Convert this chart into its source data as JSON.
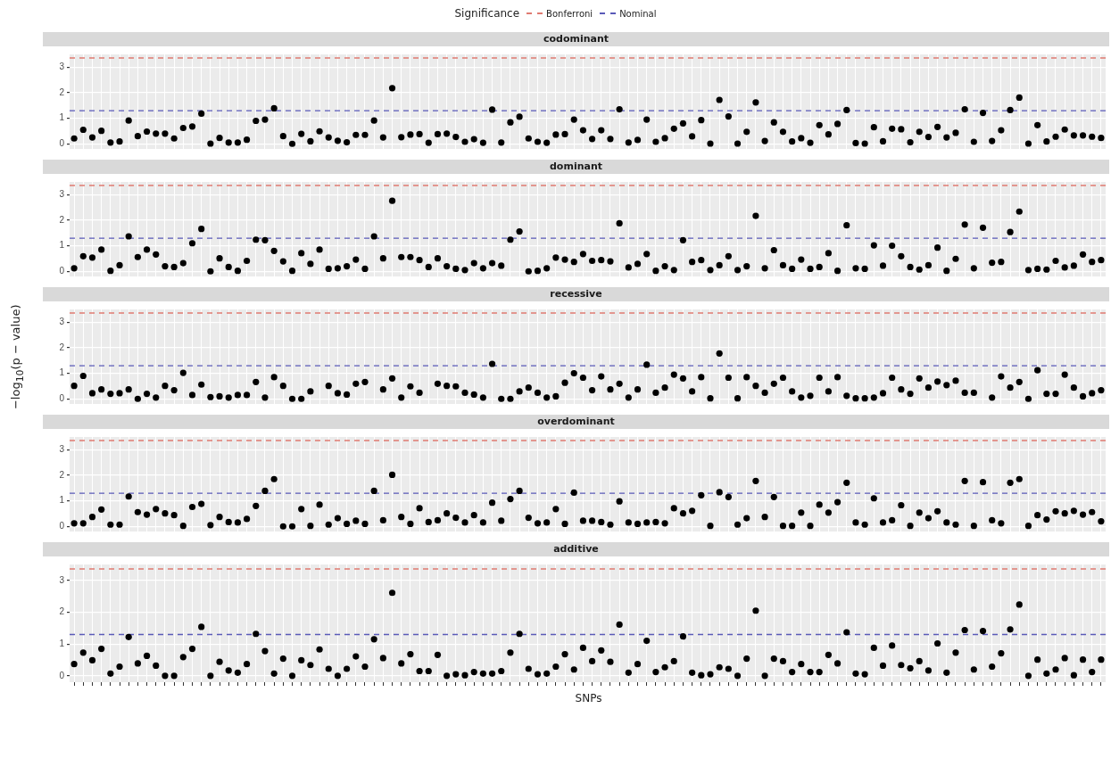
{
  "chart_data": [
    {
      "type": "scatter",
      "title": "codominant",
      "legend_title": "Significance",
      "legend": "top",
      "marker": "circle",
      "grid": true,
      "tick_labels": "y",
      "color": "#000000",
      "categories": [
        null,
        null,
        null,
        null,
        null,
        null,
        null,
        null,
        null,
        null,
        null,
        null,
        null,
        null,
        null,
        null,
        null,
        null,
        null,
        null,
        null,
        null,
        null,
        null,
        null,
        null,
        null,
        null,
        null,
        null,
        null,
        null,
        null,
        null,
        null,
        null,
        null,
        null,
        null,
        null,
        null,
        null,
        null,
        null,
        null,
        null,
        null,
        null,
        null,
        null,
        null,
        null,
        null,
        null,
        null,
        null,
        null,
        null,
        null,
        null,
        null,
        null,
        null,
        null,
        null,
        null,
        null,
        null,
        null,
        null,
        null,
        null,
        null,
        null,
        null,
        null,
        null,
        null,
        null,
        null,
        null,
        null,
        null,
        null,
        null,
        null,
        null,
        null,
        null,
        null,
        null,
        null,
        null,
        null,
        null,
        null,
        null,
        null,
        null,
        null,
        null,
        null,
        null,
        null,
        null,
        null,
        null,
        null,
        null,
        null,
        null,
        null,
        null,
        null
      ],
      "values": [
        0.21,
        0.55,
        0.25,
        0.51,
        0.05,
        0.09,
        0.91,
        0.3,
        0.48,
        0.4,
        0.4,
        0.21,
        0.62,
        0.68,
        1.18,
        0.01,
        0.23,
        0.05,
        0.05,
        0.16,
        0.9,
        0.95,
        1.39,
        0.3,
        0,
        0.39,
        0.1,
        0.49,
        0.25,
        0.12,
        0.06,
        0.35,
        0.35,
        0.91,
        0.25,
        2.18,
        0.26,
        0.36,
        0.38,
        0.04,
        0.38,
        0.4,
        0.27,
        0.08,
        0.18,
        0.04,
        1.34,
        0.05,
        0.84,
        1.06,
        0.21,
        0.08,
        0.04,
        0.36,
        0.38,
        0.95,
        0.53,
        0.19,
        0.53,
        0.19,
        1.35,
        0.05,
        0.15,
        0.95,
        0.08,
        0.22,
        0.59,
        0.8,
        0.29,
        0.93,
        0.01,
        1.72,
        1.07,
        0.01,
        0.47,
        1.62,
        0.11,
        0.84,
        0.47,
        0.09,
        0.22,
        0.04,
        0.73,
        0.37,
        0.78,
        1.32,
        0.03,
        0.01,
        0.65,
        0.1,
        0.59,
        0.57,
        0.06,
        0.47,
        0.27,
        0.66,
        0.25,
        0.43,
        1.35,
        0.08,
        1.21,
        0.11,
        0.53,
        1.32,
        1.81,
        0.01,
        0.73,
        0.09,
        0.28,
        0.56,
        0.33,
        0.33,
        0.28,
        0.23
      ],
      "ylim": [
        -0.2,
        3.5
      ],
      "yticks": [
        0,
        1,
        2,
        3
      ],
      "ref_lines": [
        {
          "axis": "y",
          "value": 3.36,
          "label": "Bonferroni",
          "color": "#e07b72",
          "line_style": "dashed"
        },
        {
          "axis": "y",
          "value": 1.3,
          "label": "Nominal",
          "color": "#5a5ab8",
          "line_style": "dashed"
        }
      ]
    },
    {
      "type": "scatter",
      "title": "dominant",
      "marker": "circle",
      "grid": true,
      "tick_labels": "y",
      "color": "#000000",
      "categories": [
        null,
        null,
        null,
        null,
        null,
        null,
        null,
        null,
        null,
        null,
        null,
        null,
        null,
        null,
        null,
        null,
        null,
        null,
        null,
        null,
        null,
        null,
        null,
        null,
        null,
        null,
        null,
        null,
        null,
        null,
        null,
        null,
        null,
        null,
        null,
        null,
        null,
        null,
        null,
        null,
        null,
        null,
        null,
        null,
        null,
        null,
        null,
        null,
        null,
        null,
        null,
        null,
        null,
        null,
        null,
        null,
        null,
        null,
        null,
        null,
        null,
        null,
        null,
        null,
        null,
        null,
        null,
        null,
        null,
        null,
        null,
        null,
        null,
        null,
        null,
        null,
        null,
        null,
        null,
        null,
        null,
        null,
        null,
        null,
        null,
        null,
        null,
        null,
        null,
        null,
        null,
        null,
        null,
        null,
        null,
        null,
        null,
        null,
        null,
        null,
        null,
        null,
        null,
        null,
        null,
        null,
        null,
        null,
        null,
        null,
        null,
        null,
        null,
        null
      ],
      "values": [
        0.12,
        0.59,
        0.54,
        0.85,
        0.02,
        0.24,
        1.37,
        0.56,
        0.85,
        0.66,
        0.2,
        0.17,
        0.32,
        1.1,
        1.66,
        0,
        0.51,
        0.17,
        0.02,
        0.41,
        1.24,
        1.22,
        0.8,
        0.39,
        0.02,
        0.71,
        0.29,
        0.85,
        0.1,
        0.12,
        0.2,
        0.46,
        0.1,
        1.37,
        0.51,
        2.76,
        0.56,
        0.56,
        0.44,
        0.17,
        0.51,
        0.2,
        0.1,
        0.05,
        0.32,
        0.12,
        0.32,
        0.22,
        1.24,
        1.56,
        0,
        0.02,
        0.12,
        0.54,
        0.46,
        0.37,
        0.68,
        0.41,
        0.44,
        0.39,
        1.88,
        0.15,
        0.29,
        0.68,
        0.02,
        0.2,
        0.05,
        1.22,
        0.37,
        0.44,
        0.05,
        0.24,
        0.59,
        0.05,
        0.2,
        2.17,
        0.12,
        0.83,
        0.24,
        0.1,
        0.46,
        0.1,
        0.17,
        0.71,
        0.02,
        1.8,
        0.12,
        0.1,
        1.02,
        0.22,
        1,
        0.59,
        0.17,
        0.07,
        0.24,
        0.93,
        0.02,
        0.49,
        1.83,
        0.12,
        1.71,
        0.34,
        0.37,
        1.54,
        2.34,
        0.05,
        0.1,
        0.07,
        0.41,
        0.15,
        0.22,
        0.66,
        0.37,
        0.44
      ],
      "ylim": [
        -0.2,
        3.5
      ],
      "yticks": [
        0,
        1,
        2,
        3
      ],
      "ref_lines": [
        {
          "axis": "y",
          "value": 3.36,
          "color": "#e07b72",
          "line_style": "dashed"
        },
        {
          "axis": "y",
          "value": 1.3,
          "color": "#5a5ab8",
          "line_style": "dashed"
        }
      ]
    },
    {
      "type": "scatter",
      "title": "recessive",
      "ylabel": "−log$_{10}$(p − value)",
      "marker": "circle",
      "grid": true,
      "tick_labels": "y",
      "color": "#000000",
      "categories": [
        null,
        null,
        null,
        null,
        null,
        null,
        null,
        null,
        null,
        null,
        null,
        null,
        null,
        null,
        null,
        null,
        null,
        null,
        null,
        null,
        null,
        null,
        null,
        null,
        null,
        null,
        null,
        null,
        null,
        null,
        null,
        null,
        null,
        null,
        null,
        null,
        null,
        null,
        null,
        null,
        null,
        null,
        null,
        null,
        null,
        null,
        null,
        null,
        null,
        null,
        null,
        null,
        null,
        null,
        null,
        null,
        null,
        null,
        null,
        null,
        null,
        null,
        null,
        null,
        null,
        null,
        null,
        null,
        null,
        null,
        null,
        null,
        null,
        null,
        null,
        null,
        null,
        null,
        null,
        null,
        null,
        null,
        null,
        null,
        null,
        null,
        null,
        null,
        null,
        null,
        null,
        null,
        null,
        null,
        null,
        null,
        null,
        null,
        null,
        null,
        null,
        null,
        null,
        null,
        null,
        null,
        null,
        null,
        null,
        null,
        null,
        null,
        null,
        null
      ],
      "values": [
        0.51,
        0.9,
        0.22,
        0.37,
        0.2,
        0.22,
        0.37,
        0,
        0.2,
        0.05,
        0.51,
        0.34,
        1.02,
        0.15,
        0.56,
        0.07,
        0.1,
        0.05,
        0.15,
        0.15,
        0.66,
        0.05,
        0.85,
        0.51,
        0,
        0,
        0.29,
        null,
        0.51,
        0.22,
        0.17,
        0.59,
        0.66,
        null,
        0.37,
        0.8,
        0.05,
        0.49,
        0.24,
        null,
        0.59,
        0.51,
        0.49,
        0.24,
        0.17,
        0.05,
        1.37,
        0,
        0,
        0.29,
        0.44,
        0.24,
        0.05,
        0.1,
        0.63,
        1,
        0.83,
        0.34,
        0.88,
        0.37,
        0.59,
        0.05,
        0.37,
        1.34,
        0.24,
        0.44,
        0.95,
        0.8,
        0.29,
        0.85,
        0.02,
        1.78,
        0.83,
        0.02,
        0.85,
        0.51,
        0.24,
        0.59,
        0.83,
        0.29,
        0.05,
        0.12,
        0.83,
        0.29,
        0.85,
        0.12,
        0.02,
        0.02,
        0.05,
        0.22,
        0.83,
        0.37,
        0.2,
        0.8,
        0.44,
        0.68,
        0.54,
        0.71,
        0.24,
        0.24,
        null,
        0.05,
        0.88,
        0.44,
        0.66,
        0,
        1.12,
        0.2,
        0.2,
        0.95,
        0.44,
        0.1,
        0.22,
        0.34
      ],
      "ylim": [
        -0.2,
        3.5
      ],
      "yticks": [
        0,
        1,
        2,
        3
      ],
      "ref_lines": [
        {
          "axis": "y",
          "value": 3.36,
          "color": "#e07b72",
          "line_style": "dashed"
        },
        {
          "axis": "y",
          "value": 1.3,
          "color": "#5a5ab8",
          "line_style": "dashed"
        }
      ]
    },
    {
      "type": "scatter",
      "title": "overdominant",
      "marker": "circle",
      "grid": true,
      "tick_labels": "y",
      "color": "#000000",
      "categories": [
        null,
        null,
        null,
        null,
        null,
        null,
        null,
        null,
        null,
        null,
        null,
        null,
        null,
        null,
        null,
        null,
        null,
        null,
        null,
        null,
        null,
        null,
        null,
        null,
        null,
        null,
        null,
        null,
        null,
        null,
        null,
        null,
        null,
        null,
        null,
        null,
        null,
        null,
        null,
        null,
        null,
        null,
        null,
        null,
        null,
        null,
        null,
        null,
        null,
        null,
        null,
        null,
        null,
        null,
        null,
        null,
        null,
        null,
        null,
        null,
        null,
        null,
        null,
        null,
        null,
        null,
        null,
        null,
        null,
        null,
        null,
        null,
        null,
        null,
        null,
        null,
        null,
        null,
        null,
        null,
        null,
        null,
        null,
        null,
        null,
        null,
        null,
        null,
        null,
        null,
        null,
        null,
        null,
        null,
        null,
        null,
        null,
        null,
        null,
        null,
        null,
        null,
        null,
        null,
        null,
        null,
        null,
        null,
        null,
        null,
        null,
        null,
        null,
        null
      ],
      "values": [
        0.12,
        0.12,
        0.37,
        0.66,
        0.07,
        0.07,
        1.17,
        0.56,
        0.46,
        0.68,
        0.51,
        0.44,
        0.02,
        0.76,
        0.88,
        0.05,
        0.37,
        0.17,
        0.15,
        0.29,
        0.8,
        1.39,
        1.85,
        0,
        0,
        0.68,
        0.02,
        0.85,
        0.07,
        0.32,
        0.1,
        0.22,
        0.1,
        1.39,
        0.24,
        2.02,
        0.37,
        0.1,
        0.71,
        0.17,
        0.24,
        0.51,
        0.34,
        0.15,
        0.44,
        0.15,
        0.93,
        0.22,
        1.07,
        1.39,
        0.34,
        0.12,
        0.15,
        0.68,
        0.1,
        1.32,
        0.22,
        0.22,
        0.17,
        0.07,
        0.98,
        0.15,
        0.1,
        0.15,
        0.17,
        0.12,
        0.71,
        0.51,
        0.61,
        1.22,
        0.02,
        1.34,
        1.15,
        0.07,
        0.32,
        1.78,
        0.37,
        1.15,
        0.02,
        0.02,
        0.54,
        0.02,
        0.85,
        0.54,
        0.95,
        1.71,
        0.15,
        0.07,
        1.1,
        0.15,
        0.24,
        0.83,
        0.02,
        0.54,
        0.32,
        0.59,
        0.15,
        0.07,
        1.78,
        0.02,
        1.73,
        0.24,
        0.12,
        1.71,
        1.85,
        0.02,
        0.44,
        0.27,
        0.59,
        0.51,
        0.61,
        0.46,
        0.56,
        0.2
      ],
      "ylim": [
        -0.2,
        3.5
      ],
      "yticks": [
        0,
        1,
        2,
        3
      ],
      "ref_lines": [
        {
          "axis": "y",
          "value": 3.36,
          "color": "#e07b72",
          "line_style": "dashed"
        },
        {
          "axis": "y",
          "value": 1.3,
          "color": "#5a5ab8",
          "line_style": "dashed"
        }
      ]
    },
    {
      "type": "scatter",
      "title": "additive",
      "xlabel": "SNPs",
      "marker": "circle",
      "grid": true,
      "tick_labels": "y",
      "color": "#000000",
      "categories": [
        null,
        null,
        null,
        null,
        null,
        null,
        null,
        null,
        null,
        null,
        null,
        null,
        null,
        null,
        null,
        null,
        null,
        null,
        null,
        null,
        null,
        null,
        null,
        null,
        null,
        null,
        null,
        null,
        null,
        null,
        null,
        null,
        null,
        null,
        null,
        null,
        null,
        null,
        null,
        null,
        null,
        null,
        null,
        null,
        null,
        null,
        null,
        null,
        null,
        null,
        null,
        null,
        null,
        null,
        null,
        null,
        null,
        null,
        null,
        null,
        null,
        null,
        null,
        null,
        null,
        null,
        null,
        null,
        null,
        null,
        null,
        null,
        null,
        null,
        null,
        null,
        null,
        null,
        null,
        null,
        null,
        null,
        null,
        null,
        null,
        null,
        null,
        null,
        null,
        null,
        null,
        null,
        null,
        null,
        null,
        null,
        null,
        null,
        null,
        null,
        null,
        null,
        null,
        null,
        null,
        null,
        null,
        null,
        null,
        null,
        null,
        null,
        null,
        null
      ],
      "values": [
        0.37,
        0.73,
        0.49,
        0.85,
        0.07,
        0.29,
        1.22,
        0.39,
        0.63,
        0.32,
        0,
        0,
        0.59,
        0.85,
        1.54,
        0,
        0.44,
        0.17,
        0.1,
        0.37,
        1.32,
        0.78,
        0.07,
        0.54,
        0,
        0.49,
        0.34,
        0.83,
        0.22,
        0,
        0.22,
        0.61,
        0.29,
        1.15,
        0.56,
        2.61,
        0.39,
        0.68,
        0.15,
        0.15,
        0.66,
        0,
        0.05,
        0.02,
        0.12,
        0.07,
        0.07,
        0.15,
        0.73,
        1.32,
        0.22,
        0.05,
        0.07,
        0.29,
        0.68,
        0.2,
        0.88,
        0.46,
        0.8,
        0.44,
        1.61,
        0.1,
        0.37,
        1.1,
        0.12,
        0.27,
        0.46,
        1.24,
        0.1,
        0.02,
        0.05,
        0.27,
        0.22,
        0,
        0.54,
        2.05,
        0,
        0.54,
        0.46,
        0.12,
        0.37,
        0.12,
        0.12,
        0.66,
        0.39,
        1.37,
        0.07,
        0.05,
        0.88,
        0.32,
        0.95,
        0.34,
        0.24,
        0.46,
        0.17,
        1.02,
        0.1,
        0.73,
        1.44,
        0.2,
        1.41,
        0.29,
        0.71,
        1.46,
        2.24,
        0,
        0.51,
        0.07,
        0.2,
        0.56,
        0.02,
        0.51,
        0.12,
        0.51
      ],
      "ylim": [
        -0.2,
        3.5
      ],
      "yticks": [
        0,
        1,
        2,
        3
      ],
      "ref_lines": [
        {
          "axis": "y",
          "value": 3.36,
          "color": "#e07b72",
          "line_style": "dashed"
        },
        {
          "axis": "y",
          "value": 1.3,
          "color": "#5a5ab8",
          "line_style": "dashed"
        }
      ]
    }
  ]
}
